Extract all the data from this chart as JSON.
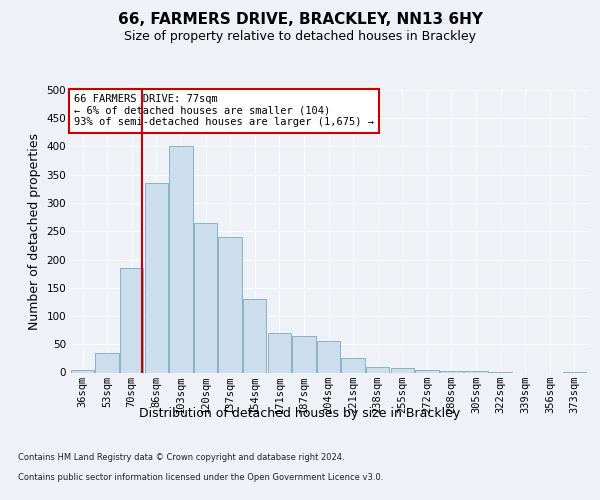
{
  "title": "66, FARMERS DRIVE, BRACKLEY, NN13 6HY",
  "subtitle": "Size of property relative to detached houses in Brackley",
  "xlabel": "Distribution of detached houses by size in Brackley",
  "ylabel": "Number of detached properties",
  "footer_line1": "Contains HM Land Registry data © Crown copyright and database right 2024.",
  "footer_line2": "Contains public sector information licensed under the Open Government Licence v3.0.",
  "bar_color": "#ccdded",
  "bar_edge_color": "#7aaabb",
  "annotation_text": "66 FARMERS DRIVE: 77sqm\n← 6% of detached houses are smaller (104)\n93% of semi-detached houses are larger (1,675) →",
  "property_line_x": 2,
  "property_line_color": "#cc0000",
  "categories": [
    "36sqm",
    "53sqm",
    "70sqm",
    "86sqm",
    "103sqm",
    "120sqm",
    "137sqm",
    "154sqm",
    "171sqm",
    "187sqm",
    "204sqm",
    "221sqm",
    "238sqm",
    "255sqm",
    "272sqm",
    "288sqm",
    "305sqm",
    "322sqm",
    "339sqm",
    "356sqm",
    "373sqm"
  ],
  "values": [
    5,
    35,
    185,
    335,
    400,
    265,
    240,
    130,
    70,
    65,
    55,
    25,
    10,
    8,
    5,
    3,
    3,
    1,
    0,
    0,
    1
  ],
  "ylim": [
    0,
    500
  ],
  "yticks": [
    0,
    50,
    100,
    150,
    200,
    250,
    300,
    350,
    400,
    450,
    500
  ],
  "background_color": "#eef2f7",
  "plot_bg_color": "#eef2f7",
  "grid_color": "#ffffff",
  "title_fontsize": 11,
  "subtitle_fontsize": 9,
  "tick_fontsize": 7.5,
  "label_fontsize": 9
}
